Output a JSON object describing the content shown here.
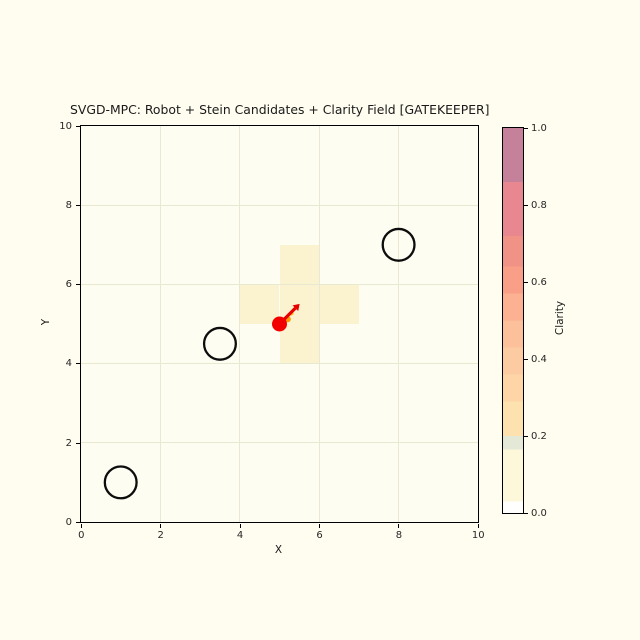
{
  "title": "SVGD-MPC: Robot + Stein Candidates + Clarity Field [GATEKEEPER]",
  "colors": {
    "figure_background": "#fffdf0",
    "grid": "#e9e9d2",
    "axis": "#000000",
    "text": "#1a1a1a",
    "field_cell": "#fbf3d0",
    "robot": "#f20000",
    "heading_arrow": "#e60000",
    "candidate_colors": [
      "#ff9d00",
      "#ffc30b"
    ],
    "obstacle_stroke": "#0d0d0d"
  },
  "chart_data": {
    "type": "scatter",
    "title": "SVGD-MPC: Robot + Stein Candidates + Clarity Field [GATEKEEPER]",
    "xlabel": "X",
    "ylabel": "Y",
    "xlim": [
      0,
      10
    ],
    "ylim": [
      0,
      10
    ],
    "xticks": [
      "0",
      "2",
      "4",
      "6",
      "8",
      "10"
    ],
    "yticks": [
      "0",
      "2",
      "4",
      "6",
      "8",
      "10"
    ],
    "grid": true,
    "robot": {
      "x": 5.0,
      "y": 5.0,
      "heading_deg": 45
    },
    "heading_arrow": {
      "from": [
        5.1,
        5.1
      ],
      "to": [
        5.4,
        5.4
      ]
    },
    "stein_candidates": [
      {
        "x": 5.21,
        "y": 5.12
      },
      {
        "x": 5.3,
        "y": 5.27
      }
    ],
    "obstacles": [
      {
        "x": 1.0,
        "y": 1.0,
        "r": 0.4
      },
      {
        "x": 3.5,
        "y": 4.5,
        "r": 0.4
      },
      {
        "x": 8.0,
        "y": 7.0,
        "r": 0.4
      }
    ],
    "clarity_field": {
      "cell_size": 1,
      "cells": [
        {
          "x": 5,
          "y": 6,
          "value": 0.12
        },
        {
          "x": 4,
          "y": 5,
          "value": 0.12
        },
        {
          "x": 5,
          "y": 5,
          "value": 0.12
        },
        {
          "x": 6,
          "y": 5,
          "value": 0.12
        },
        {
          "x": 5,
          "y": 4,
          "value": 0.12
        }
      ]
    },
    "colorbar": {
      "label": "Clarity",
      "range": [
        0,
        1
      ],
      "ticks": [
        "0.0",
        "0.2",
        "0.4",
        "0.6",
        "0.8",
        "1.0"
      ],
      "stops": [
        {
          "from": 1.0,
          "to": 0.86,
          "color": "#c48199"
        },
        {
          "from": 0.86,
          "to": 0.72,
          "color": "#e98790"
        },
        {
          "from": 0.72,
          "to": 0.64,
          "color": "#f19286"
        },
        {
          "from": 0.64,
          "to": 0.57,
          "color": "#f99f87"
        },
        {
          "from": 0.57,
          "to": 0.5,
          "color": "#fbb192"
        },
        {
          "from": 0.5,
          "to": 0.43,
          "color": "#fcc09b"
        },
        {
          "from": 0.43,
          "to": 0.36,
          "color": "#fdcba1"
        },
        {
          "from": 0.36,
          "to": 0.29,
          "color": "#fdd5a6"
        },
        {
          "from": 0.29,
          "to": 0.2,
          "color": "#fde2af"
        },
        {
          "from": 0.2,
          "to": 0.165,
          "color": "#e4e8d6"
        },
        {
          "from": 0.165,
          "to": 0.03,
          "color": "#fdf8d9"
        },
        {
          "from": 0.03,
          "to": 0.0,
          "color": "#fffffd"
        }
      ]
    }
  }
}
